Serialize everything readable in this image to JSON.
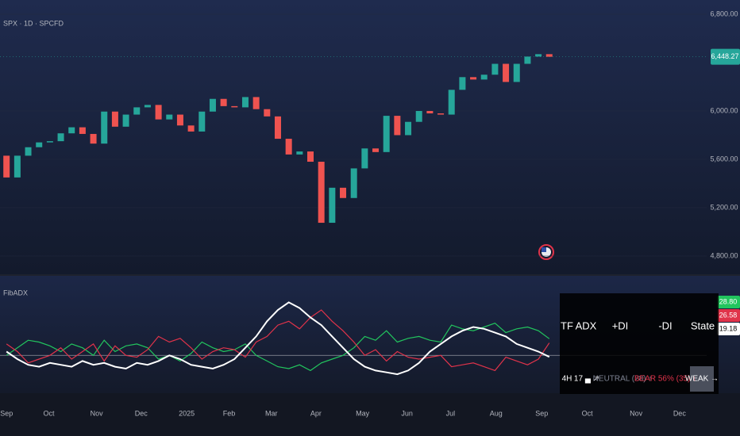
{
  "chart_data": [
    {
      "type": "candlestick",
      "title": "SPX · 1D · SPCFD",
      "open": [
        5630,
        5450,
        5630,
        5700,
        5740,
        5750,
        5815,
        5865,
        5810,
        5730,
        5995,
        5870,
        5970,
        6030,
        6050,
        5930,
        5970,
        5880,
        5830,
        5995,
        6100,
        6040,
        6030,
        6115,
        6015,
        5955,
        5770,
        5640,
        5665,
        5580,
        5075,
        5365,
        5280,
        5525,
        5690,
        5660,
        5960,
        5800,
        5910,
        6000,
        5980,
        5970,
        6175,
        6280,
        6260,
        6300,
        6390,
        6240,
        6390,
        6450,
        6470
      ],
      "close": [
        5450,
        5630,
        5700,
        5740,
        5750,
        5815,
        5865,
        5810,
        5730,
        5995,
        5870,
        5970,
        6030,
        6050,
        5930,
        5970,
        5880,
        5830,
        5995,
        6100,
        6040,
        6030,
        6115,
        6015,
        5955,
        5770,
        5640,
        5665,
        5580,
        5075,
        5365,
        5280,
        5525,
        5690,
        5660,
        5960,
        5800,
        5910,
        6000,
        5980,
        5970,
        6175,
        6280,
        6260,
        6300,
        6390,
        6240,
        6390,
        6450,
        6470,
        6448.27
      ],
      "up_color": "#26a69a",
      "down_color": "#ef5350",
      "xlim": [
        -0.6,
        64.5
      ],
      "xticks": [
        {
          "value": 0,
          "label": "Sep"
        },
        {
          "value": 3.9,
          "label": "Oct"
        },
        {
          "value": 8.3,
          "label": "Nov"
        },
        {
          "value": 12.4,
          "label": "Dec"
        },
        {
          "value": 16.6,
          "label": "2025"
        },
        {
          "value": 20.5,
          "label": "Feb"
        },
        {
          "value": 24.4,
          "label": "Mar"
        },
        {
          "value": 28.5,
          "label": "Apr"
        },
        {
          "value": 32.8,
          "label": "May"
        },
        {
          "value": 36.9,
          "label": "Jun"
        },
        {
          "value": 40.9,
          "label": "Jul"
        },
        {
          "value": 45.1,
          "label": "Aug"
        },
        {
          "value": 49.3,
          "label": "Sep"
        },
        {
          "value": 53.5,
          "label": "Oct"
        },
        {
          "value": 58.0,
          "label": "Nov"
        },
        {
          "value": 62.0,
          "label": "Dec"
        }
      ],
      "ylim": [
        4649,
        6918
      ],
      "yticks": [
        {
          "value": 4800,
          "label": "4,800.00"
        },
        {
          "value": 5200,
          "label": "5,200.00"
        },
        {
          "value": 5600,
          "label": "5,600.00"
        },
        {
          "value": 6000,
          "label": "6,000.00"
        },
        {
          "value": 6800,
          "label": "6,800.00"
        }
      ],
      "last_price": {
        "value": 6448.27,
        "label": "6,448.27"
      }
    },
    {
      "type": "line",
      "title": "FibADX",
      "xlim": [
        -0.6,
        64.5
      ],
      "ylim": [
        0,
        62
      ],
      "hline": 20,
      "series": [
        {
          "color": "#22c55e",
          "values": [
            20,
            24,
            28,
            27,
            25,
            22,
            26,
            24,
            20,
            28,
            22,
            25,
            26,
            24,
            18,
            20,
            17,
            21,
            27,
            24,
            22,
            23,
            26,
            20,
            17,
            14,
            13,
            15,
            12,
            16,
            18,
            20,
            24,
            30,
            28,
            33,
            27,
            29,
            30,
            28,
            27,
            36,
            34,
            33,
            35,
            37,
            32,
            34,
            35,
            33,
            28.8
          ],
          "end_label": "28.80"
        },
        {
          "color": "#e0334a",
          "values": [
            26,
            22,
            16,
            18,
            20,
            24,
            18,
            22,
            26,
            17,
            25,
            20,
            19,
            23,
            30,
            27,
            29,
            24,
            18,
            22,
            24,
            23,
            19,
            27,
            30,
            36,
            38,
            34,
            40,
            44,
            38,
            33,
            27,
            20,
            23,
            17,
            22,
            19,
            18,
            19,
            20,
            14,
            15,
            16,
            14,
            12,
            19,
            17,
            15,
            18,
            26.58
          ],
          "end_label": "26.58"
        },
        {
          "color": "#ffffff",
          "values": [
            22,
            18,
            15,
            14,
            16,
            15,
            14,
            17,
            15,
            16,
            14,
            13,
            16,
            15,
            17,
            20,
            18,
            15,
            14,
            13,
            15,
            18,
            24,
            30,
            38,
            44,
            48,
            45,
            40,
            36,
            30,
            24,
            18,
            14,
            12,
            11,
            10,
            12,
            16,
            22,
            26,
            30,
            33,
            35,
            34,
            32,
            30,
            26,
            24,
            22,
            19.18
          ],
          "end_label": "19.18"
        }
      ]
    }
  ],
  "table": {
    "header": [
      "TF",
      "ADX",
      "+DI",
      "-DI",
      "State"
    ],
    "rows": [
      [
        "4H",
        "17 ▄ ↗",
        "NEUTRAL (28) ↑",
        "BEAR 56% (35) ↓",
        "WEAK →"
      ]
    ]
  }
}
